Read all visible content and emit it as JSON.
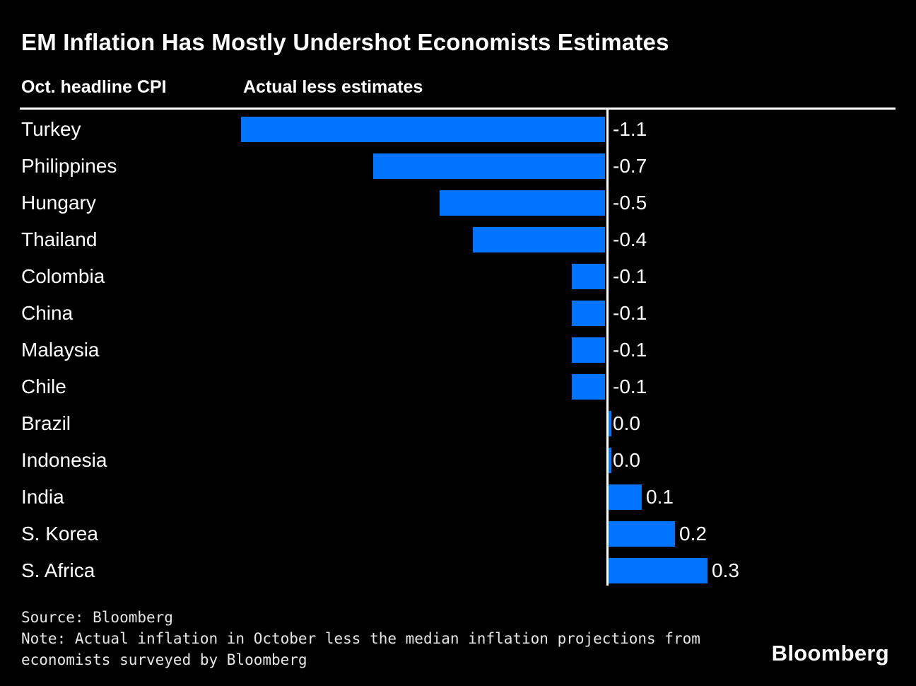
{
  "header": {
    "title": "EM Inflation Has Mostly Undershot Economists Estimates",
    "col_left": "Oct. headline CPI",
    "col_right": "Actual less estimates"
  },
  "chart_data": {
    "type": "bar",
    "orientation": "horizontal",
    "categories": [
      "Turkey",
      "Philippines",
      "Hungary",
      "Thailand",
      "Colombia",
      "China",
      "Malaysia",
      "Chile",
      "Brazil",
      "Indonesia",
      "India",
      "S. Korea",
      "S. Africa"
    ],
    "values": [
      -1.1,
      -0.7,
      -0.5,
      -0.4,
      -0.1,
      -0.1,
      -0.1,
      -0.1,
      0.0,
      0.0,
      0.1,
      0.2,
      0.3
    ],
    "value_labels": [
      "-1.1",
      "-0.7",
      "-0.5",
      "-0.4",
      "-0.1",
      "-0.1",
      "-0.1",
      "-0.1",
      "0.0",
      "0.0",
      "0.1",
      "0.2",
      "0.3"
    ],
    "title": "EM Inflation Has Mostly Undershot Economists Estimates",
    "xlabel": "",
    "ylabel": "",
    "xlim": [
      -1.2,
      0.9
    ],
    "grid": false,
    "legend": false,
    "baseline": 0
  },
  "footer": {
    "source": "Source: Bloomberg",
    "note": "Note: Actual inflation in October less the median inflation projections from economists surveyed by Bloomberg",
    "logo": "Bloomberg"
  },
  "colors": {
    "background": "#000000",
    "bar": "#0073ff",
    "text": "#ffffff",
    "footer_text": "#e6e6e6",
    "axis_line": "#ffffff"
  }
}
